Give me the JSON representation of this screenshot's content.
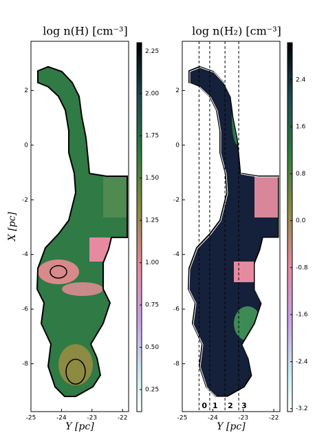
{
  "chart_data": [
    {
      "type": "map",
      "title": "log n(H) [cm⁻³]",
      "x_label": "Y [pc]",
      "y_label": "X [pc]",
      "xlim": [
        -25,
        -21.8
      ],
      "xticks": [
        -25,
        -24,
        -23,
        -22
      ],
      "ylim": [
        -9.75,
        3.8
      ],
      "yticks": [
        2,
        0,
        -2,
        -4,
        -6,
        -8
      ],
      "colorbar": {
        "lim": [
          0.12,
          2.3
        ],
        "ticks": [
          2.25,
          {
            "value": 2,
            "label": "2.00"
          },
          1.75,
          {
            "value": 1.5,
            "label": "1.50"
          },
          1.25,
          {
            "value": 1,
            "label": "1.00"
          },
          0.75,
          {
            "value": 0.5,
            "label": "0.50"
          },
          0.25
        ]
      }
    },
    {
      "type": "map",
      "title": "log n(H₂) [cm⁻³]",
      "x_label": "Y [pc]",
      "xlim": [
        -25,
        -21.8
      ],
      "xticks": [
        -25,
        -24,
        -23,
        -22
      ],
      "ylim": [
        -9.75,
        3.8
      ],
      "yticks": [
        2,
        0,
        -2,
        -4,
        -6,
        -8
      ],
      "colorbar": {
        "lim": [
          -3.25,
          3.03
        ],
        "ticks": [
          2.4,
          1.6,
          0.8,
          {
            "value": 0,
            "label": "0.0"
          },
          -0.8,
          -1.6,
          -2.4,
          -3.2
        ]
      },
      "cuts": {
        "positions": [
          -24.45,
          -24.1,
          -23.6,
          -23.15
        ],
        "labels": [
          "0",
          "1",
          "2",
          "3"
        ]
      }
    }
  ]
}
